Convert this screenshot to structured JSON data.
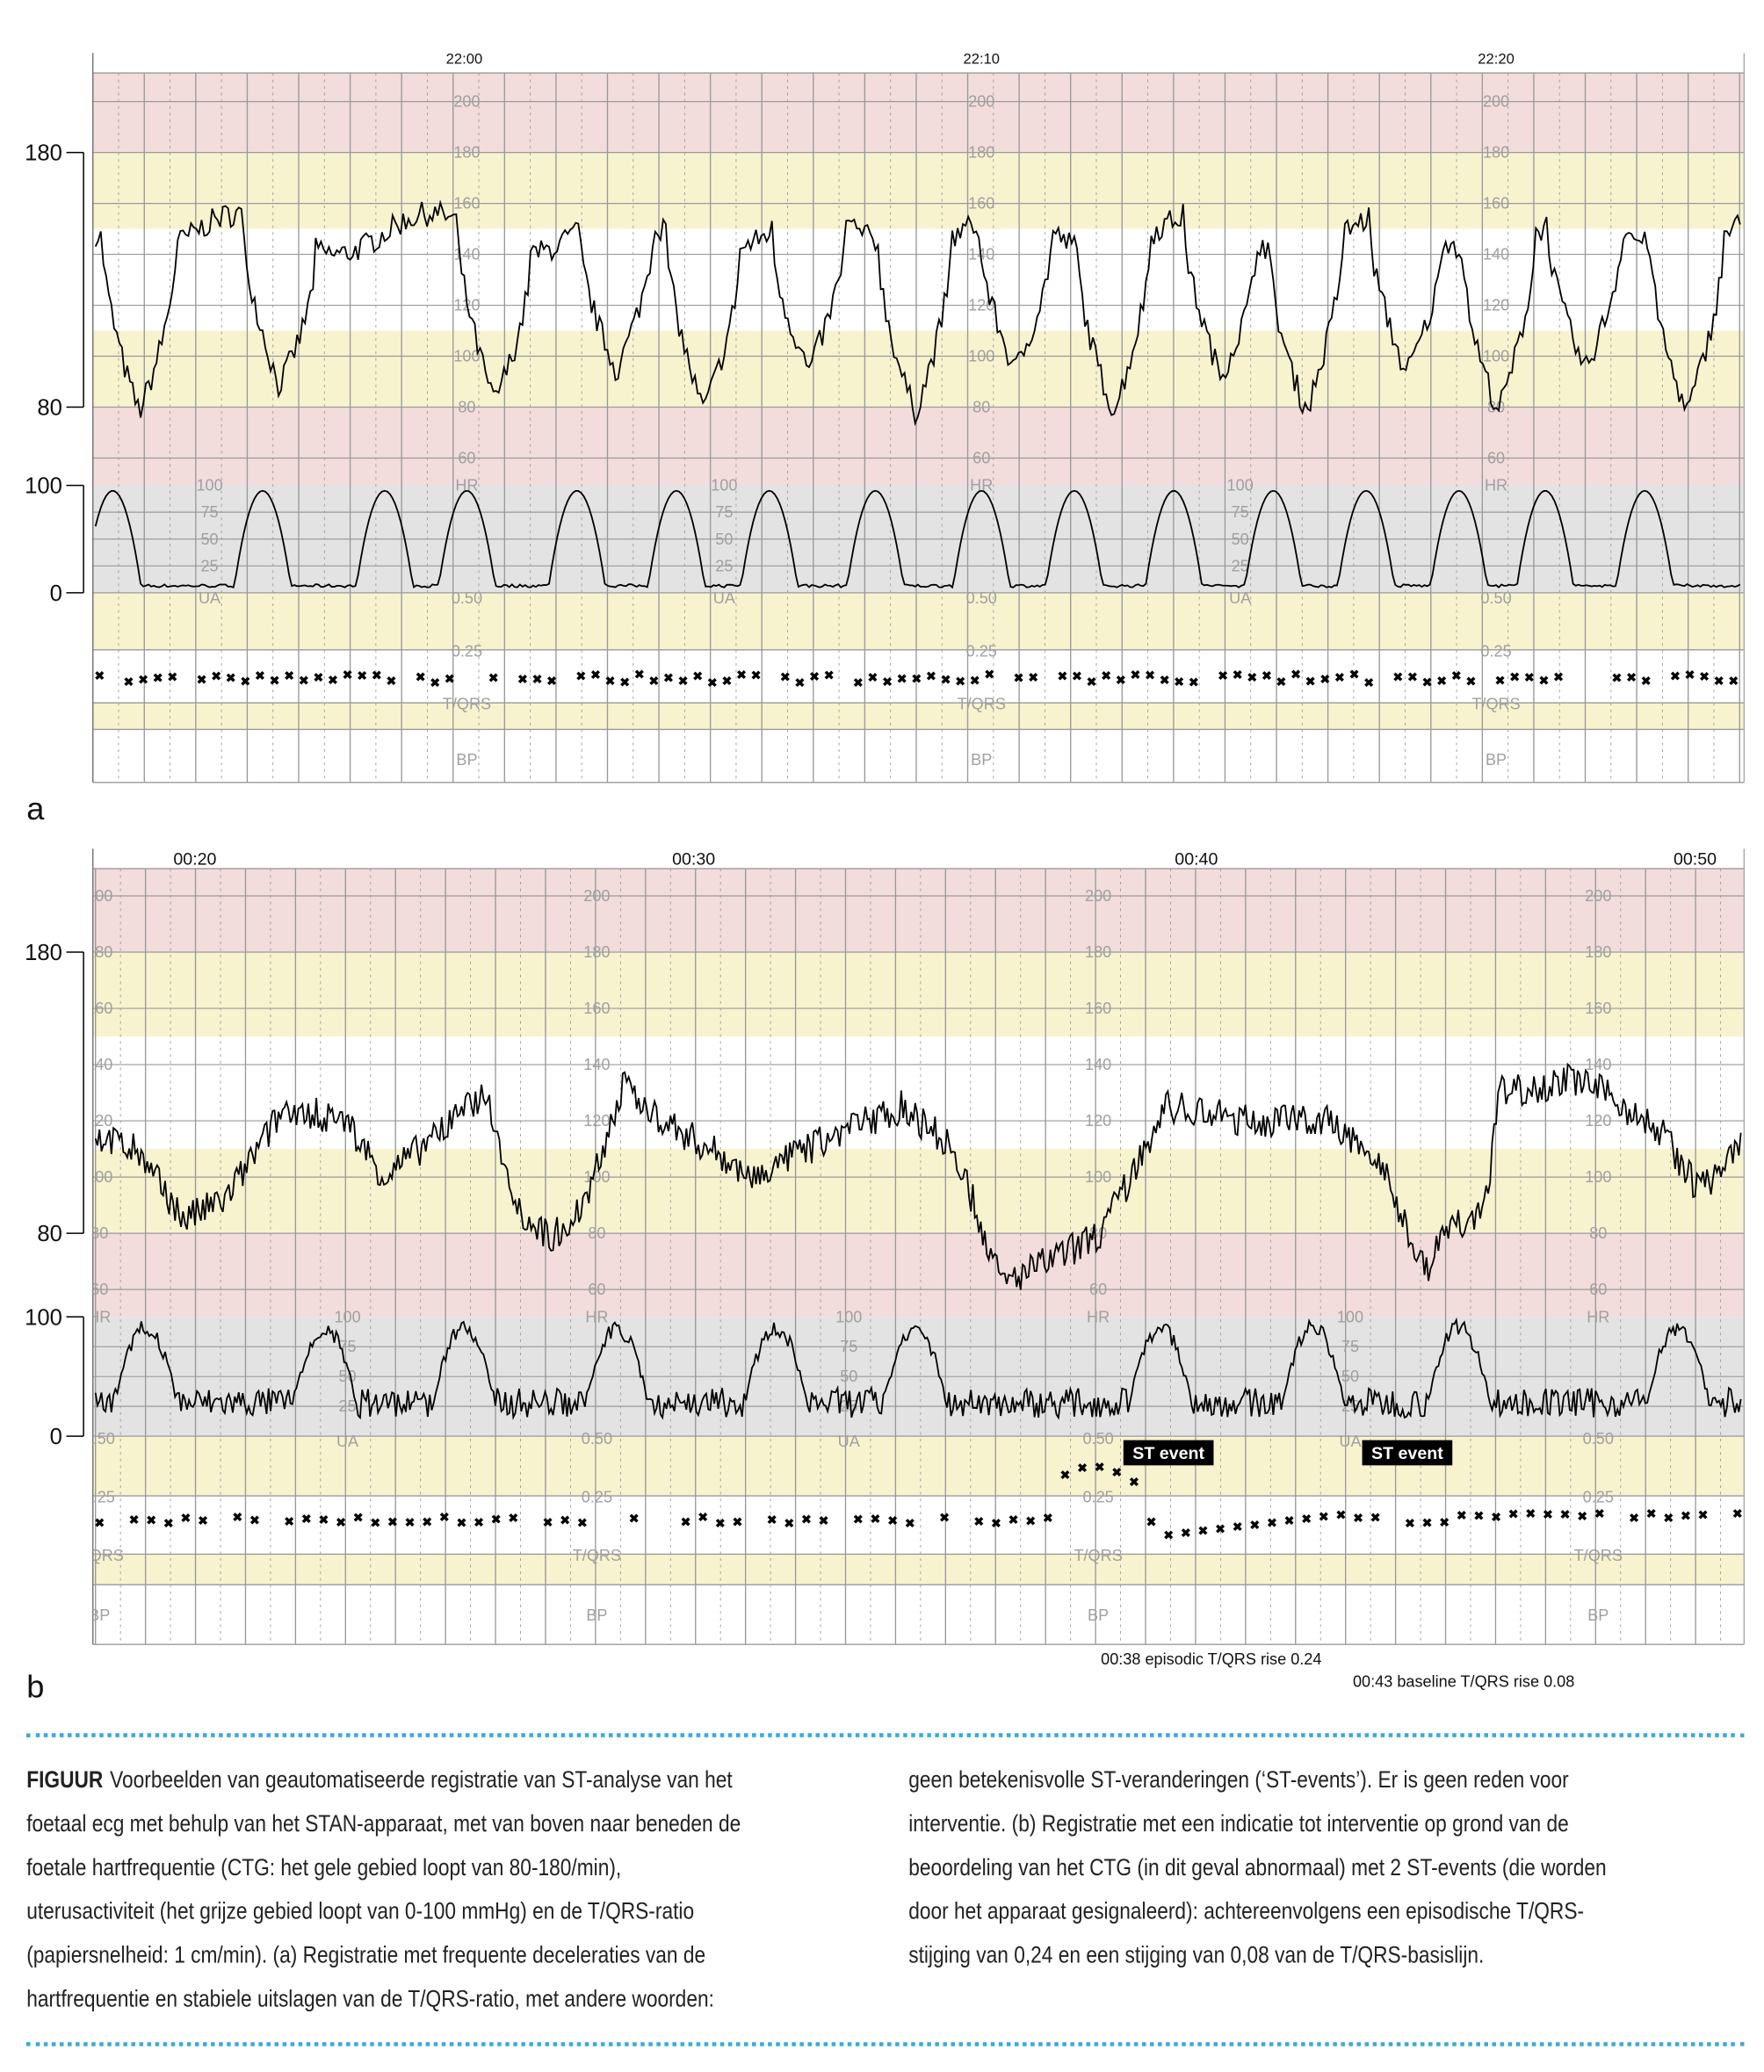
{
  "panels": [
    {
      "letter": "a",
      "time_labels": [
        "22:00",
        "22:10",
        "22:20"
      ],
      "left_axis": {
        "hr_top": "180",
        "hr_bottom": "80",
        "ua_top": "100",
        "ua_bottom": "0"
      }
    },
    {
      "letter": "b",
      "time_labels": [
        "00:20",
        "00:30",
        "00:40",
        "00:50"
      ],
      "left_axis": {
        "hr_top": "180",
        "hr_bottom": "80",
        "ua_top": "100",
        "ua_bottom": "0"
      },
      "events": [
        "ST event",
        "ST event"
      ],
      "annotations": [
        "00:38 episodic T/QRS rise 0.24",
        "00:43 baseline T/QRS rise 0.08"
      ]
    }
  ],
  "inner_scale": {
    "hr": [
      "200",
      "180",
      "160",
      "140",
      "120",
      "100",
      "80",
      "60"
    ],
    "hr_name": "HR",
    "ua": [
      "100",
      "75",
      "50",
      "25"
    ],
    "ua_name": "UA",
    "tqrs": [
      "0.50",
      "0.25"
    ],
    "tqrs_name": "T/QRS",
    "bp_name": "BP"
  },
  "colors": {
    "red_band": "#f2dcdc",
    "yellow_band": "#f7f3cf",
    "gray_band": "#e3e3e3",
    "grid": "#9a9a9a",
    "caption_rule": "#3aa9dc"
  },
  "caption": {
    "label": "FIGUUR",
    "col1": [
      "Voorbeelden van geautomatiseerde registratie van ST-analyse van het",
      "foetaal ecg met behulp van het STAN-apparaat, met van boven naar beneden de",
      "foetale hartfrequentie (CTG: het gele gebied loopt van 80-180/min),",
      "uterusactiviteit (het grijze gebied loopt van 0-100 mmHg) en de T/QRS-ratio",
      "(papiersnelheid: 1 cm/min). (a) Registratie met frequente deceleraties van de",
      "hartfrequentie en stabiele uitslagen van de T/QRS-ratio, met andere woorden:"
    ],
    "col2": [
      "geen betekenisvolle ST-veranderingen (‘ST-events’). Er is geen reden voor",
      "interventie. (b) Registratie met een indicatie tot interventie op grond van de",
      "beoordeling van het CTG (in dit geval abnormaal) met 2 ST-events (die worden",
      "door het apparaat gesignaleerd): achtereenvolgens een episodische T/QRS-",
      "stijging van 0,24 en een stijging van 0,08 van de T/QRS-basislijn."
    ]
  }
}
